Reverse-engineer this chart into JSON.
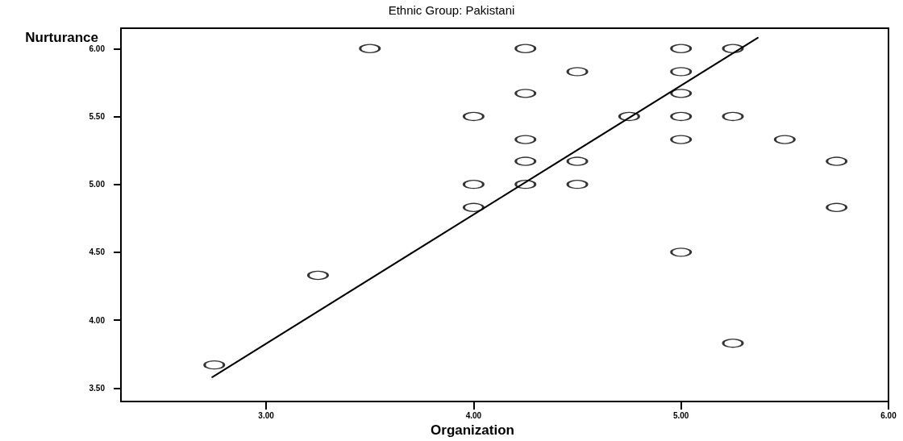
{
  "chart_data": {
    "type": "scatter",
    "title": "Ethnic Group: Pakistani",
    "xlabel": "Organization",
    "ylabel": "Nurturance",
    "xlim": [
      2.3,
      6.0
    ],
    "ylim": [
      3.4,
      6.15
    ],
    "xticks": [
      {
        "value": 3,
        "label": "3.00"
      },
      {
        "value": 4,
        "label": "4.00"
      },
      {
        "value": 5,
        "label": "5.00"
      },
      {
        "value": 6,
        "label": "6.00"
      }
    ],
    "yticks": [
      {
        "value": 3.5,
        "label": "3.50"
      },
      {
        "value": 4,
        "label": "4.00"
      },
      {
        "value": 4.5,
        "label": "4.50"
      },
      {
        "value": 5,
        "label": "5.00"
      },
      {
        "value": 5.5,
        "label": "5.50"
      },
      {
        "value": 6,
        "label": "6.00"
      }
    ],
    "grid": false,
    "marker": "circle",
    "series": [
      {
        "color": "#000000",
        "x": [
          3.5,
          4.25,
          5.0,
          5.25,
          4.5,
          5.0,
          4.25,
          5.0,
          4.0,
          4.75,
          5.0,
          5.25,
          4.25,
          5.0,
          5.5,
          4.25,
          4.5,
          5.75,
          4.0,
          4.25,
          4.5,
          4.0,
          5.75,
          5.0,
          5.25,
          3.25,
          2.75
        ],
        "values": [
          6.0,
          6.0,
          6.0,
          6.0,
          5.83,
          5.83,
          5.67,
          5.67,
          5.5,
          5.5,
          5.5,
          5.5,
          5.33,
          5.33,
          5.33,
          5.17,
          5.17,
          5.17,
          5.0,
          5.0,
          5.0,
          4.83,
          4.83,
          4.5,
          3.83,
          4.33,
          3.67
        ]
      },
      {
        "type": "line",
        "color": "#000000",
        "marker": "none",
        "line_style": "solid",
        "x": [
          2.74,
          5.37
        ],
        "values": [
          3.58,
          6.08
        ]
      }
    ]
  }
}
